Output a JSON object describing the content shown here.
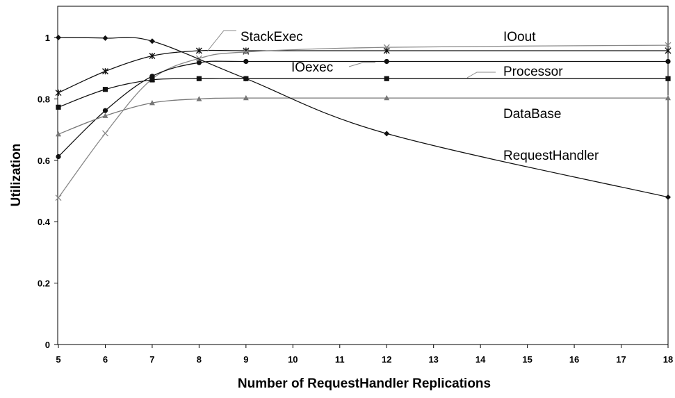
{
  "chart_data": {
    "type": "line",
    "xlabel": "Number of RequestHandler Replications",
    "ylabel": "Utilization",
    "xlim": [
      5,
      18
    ],
    "ylim": [
      0,
      1.1
    ],
    "x_ticks": [
      "5",
      "6",
      "7",
      "8",
      "9",
      "10",
      "11",
      "12",
      "13",
      "14",
      "15",
      "16",
      "17",
      "18"
    ],
    "y_ticks": [
      "0",
      "0.2",
      "0.4",
      "0.6",
      "0.8",
      "1"
    ],
    "grid": false,
    "series": [
      {
        "name": "IOout",
        "marker": "asterisk",
        "x": [
          5,
          6,
          7,
          8,
          9,
          12,
          18
        ],
        "y": [
          0.82,
          0.89,
          0.94,
          0.957,
          0.957,
          0.957,
          0.957
        ]
      },
      {
        "name": "StackExec",
        "marker": "x",
        "x": [
          5,
          6,
          7,
          8,
          9,
          12,
          18
        ],
        "y": [
          0.478,
          0.688,
          0.865,
          0.932,
          0.953,
          0.968,
          0.975
        ]
      },
      {
        "name": "IOexec",
        "marker": "circle",
        "x": [
          5,
          6,
          7,
          8,
          9,
          12,
          18
        ],
        "y": [
          0.612,
          0.762,
          0.874,
          0.918,
          0.922,
          0.922,
          0.922
        ]
      },
      {
        "name": "Processor",
        "marker": "square",
        "x": [
          5,
          6,
          7,
          8,
          9,
          12,
          18
        ],
        "y": [
          0.773,
          0.831,
          0.862,
          0.866,
          0.866,
          0.866,
          0.866
        ]
      },
      {
        "name": "DataBase",
        "marker": "triangle",
        "x": [
          5,
          6,
          7,
          8,
          9,
          12,
          18
        ],
        "y": [
          0.685,
          0.745,
          0.787,
          0.8,
          0.803,
          0.803,
          0.803
        ]
      },
      {
        "name": "RequestHandler",
        "marker": "diamond",
        "x": [
          5,
          6,
          7,
          9,
          12,
          18
        ],
        "y": [
          1.0,
          0.998,
          0.988,
          0.866,
          0.687,
          0.48
        ]
      }
    ]
  }
}
